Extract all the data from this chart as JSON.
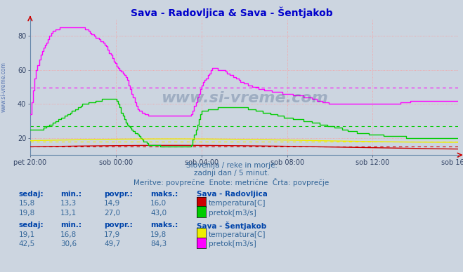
{
  "title": "Sava - Radovljica & Sava - Šentjakob",
  "title_color": "#0000cc",
  "bg_color": "#ccd5e0",
  "grid_color": "#ff9999",
  "xtick_labels": [
    "pet 20:00",
    "sob 00:00",
    "sob 04:00",
    "sob 08:00",
    "sob 12:00",
    "sob 16:00"
  ],
  "yticks": [
    20,
    40,
    60,
    80
  ],
  "ylim": [
    10,
    90
  ],
  "subtitle1": "Slovenija / reke in morje.",
  "subtitle2": "zadnji dan / 5 minut.",
  "subtitle3": "Meritve: povprečne  Enote: metrične  Črta: povprečje",
  "watermark": "www.si-vreme.com",
  "left_label": "www.si-vreme.com",
  "colors": {
    "rad_temp": "#cc0000",
    "rad_pretok": "#00cc00",
    "sen_temp": "#eeee00",
    "sen_pretok": "#ff00ff"
  },
  "avg": {
    "rad_temp": 14.9,
    "rad_pretok": 27.0,
    "sen_temp": 17.9,
    "sen_pretok": 49.7
  },
  "stats": {
    "rad_temp": [
      "15,8",
      "13,3",
      "14,9",
      "16,0"
    ],
    "rad_pretok": [
      "19,8",
      "13,1",
      "27,0",
      "43,0"
    ],
    "sen_temp": [
      "19,1",
      "16,8",
      "17,9",
      "19,8"
    ],
    "sen_pretok": [
      "42,5",
      "30,6",
      "49,7",
      "84,3"
    ]
  },
  "n_points": 288,
  "text_color": "#336699",
  "header_color": "#0044aa",
  "label_color": "#336699"
}
